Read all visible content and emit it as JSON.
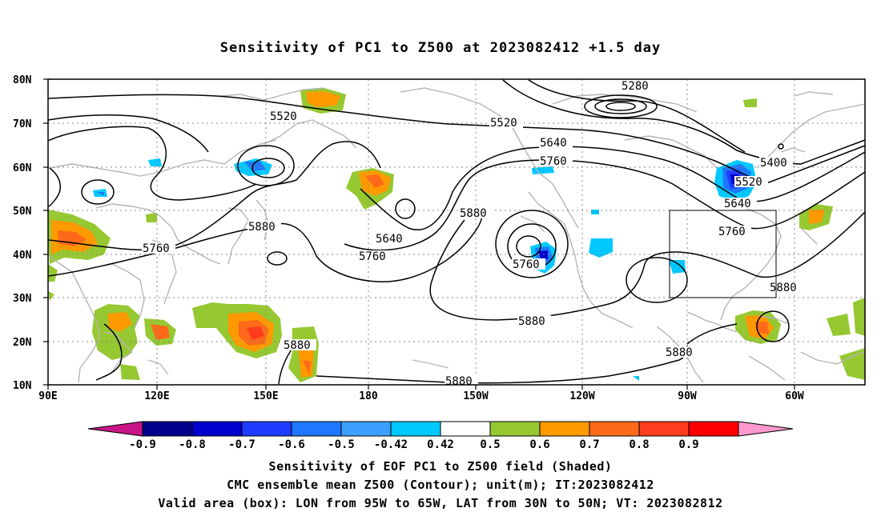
{
  "title": "Sensitivity of PC1 to Z500 at 2023082412 +1.5 day",
  "lat_labels": [
    "80N",
    "70N",
    "60N",
    "50N",
    "40N",
    "30N",
    "20N",
    "10N"
  ],
  "lon_labels": [
    "90E",
    "120E",
    "150E",
    "180",
    "150W",
    "120W",
    "90W",
    "60W"
  ],
  "contour_labels": [
    "5280",
    "5520",
    "5520",
    "5640",
    "5760",
    "5400",
    "5520",
    "5640",
    "5880",
    "5880",
    "5640",
    "5760",
    "5760",
    "5760",
    "5760",
    "5880",
    "5880",
    "5880",
    "5880",
    "5880"
  ],
  "colorbar": {
    "labels": [
      "-0.9",
      "-0.8",
      "-0.7",
      "-0.6",
      "-0.5",
      "-0.42",
      "0.42",
      "0.5",
      "0.6",
      "0.7",
      "0.8",
      "0.9"
    ],
    "colors": [
      "#c71585",
      "#00008b",
      "#0000cd",
      "#1e3cff",
      "#1e78ff",
      "#3ca0ff",
      "#00c8ff",
      "#ffffff",
      "#96c832",
      "#ff9900",
      "#ff6a1a",
      "#ff3c1e",
      "#ff0000",
      "#ff99cc"
    ]
  },
  "caption": {
    "line1": "Sensitivity of EOF PC1 to Z500 field (Shaded)",
    "line2": "CMC ensemble mean Z500 (Contour); unit(m); IT:2023082412",
    "line3": "Valid area (box): LON from 95W to 65W, LAT from 30N to 50N; VT: 2023082812"
  },
  "valid_box": {
    "lon_min": "95W",
    "lon_max": "65W",
    "lat_min": "30N",
    "lat_max": "50N"
  }
}
